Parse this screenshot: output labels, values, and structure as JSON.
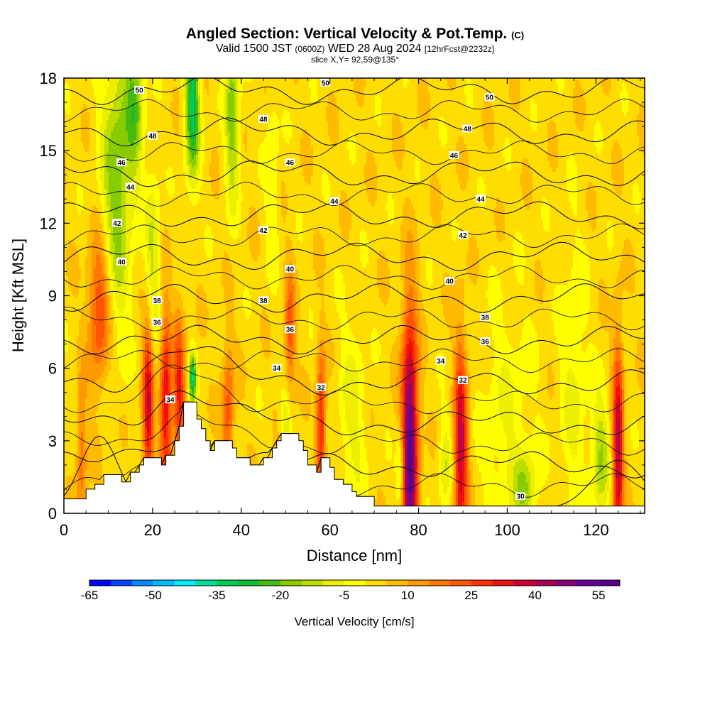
{
  "header": {
    "title": "Angled Section: Vertical Velocity & Pot.Temp.",
    "title_tag": "(C)",
    "valid_prefix": "Valid 1500 JST",
    "valid_utc": "(0600Z)",
    "valid_date": "WED 28 Aug 2024",
    "forecast_tag": "[12hrFcst@2232z]",
    "slice": "slice X,Y= 92,59@135°"
  },
  "chart_data": {
    "type": "heatmap",
    "title": "Angled Section: Vertical Velocity & Pot.Temp.",
    "xlabel": "Distance [nm]",
    "ylabel": "Height [Kft MSL]",
    "xlim": [
      0,
      131
    ],
    "ylim": [
      0,
      18
    ],
    "x_ticks": [
      "0",
      "20",
      "40",
      "60",
      "80",
      "100",
      "120"
    ],
    "x_tick_values": [
      0,
      20,
      40,
      60,
      80,
      100,
      120
    ],
    "y_ticks": [
      "0",
      "3",
      "6",
      "9",
      "12",
      "15",
      "18"
    ],
    "y_tick_values": [
      0,
      3,
      6,
      9,
      12,
      15,
      18
    ],
    "colorbar": {
      "label": "Vertical Velocity [cm/s]",
      "min": -65,
      "max": 60,
      "step": 5,
      "tick_labels": [
        "-65",
        "-50",
        "-35",
        "-20",
        "-5",
        "10",
        "25",
        "40",
        "55"
      ],
      "tick_values": [
        -65,
        -50,
        -35,
        -20,
        -5,
        10,
        25,
        40,
        55
      ],
      "colors": [
        "#0000ff",
        "#0044ff",
        "#0088ff",
        "#00bbff",
        "#00eeff",
        "#00dd99",
        "#00cc55",
        "#11bb33",
        "#44bb11",
        "#88cc00",
        "#bbdd00",
        "#eeee00",
        "#ffff00",
        "#ffdd00",
        "#ffbb00",
        "#ff9900",
        "#ff7700",
        "#ff5500",
        "#ff3300",
        "#ee1111",
        "#cc0033",
        "#aa0055",
        "#880077",
        "#660099",
        "#550088"
      ]
    },
    "theta_contours": [
      {
        "level": 30,
        "label": "30",
        "label_at": [
          103,
          0.7
        ]
      },
      {
        "level": 32,
        "label": "32",
        "label_at": [
          58,
          5.2
        ]
      },
      {
        "level": 34,
        "label": "34",
        "label_at": [
          48,
          6.0
        ]
      },
      {
        "level": 36,
        "label": "36",
        "label_at": [
          51,
          7.6
        ]
      },
      {
        "level": 38,
        "label": "38",
        "label_at": [
          45,
          8.8
        ]
      },
      {
        "level": 40,
        "label": "40",
        "label_at": [
          51,
          10.1
        ]
      },
      {
        "level": 42,
        "label": "42",
        "label_at": [
          45,
          11.7
        ]
      },
      {
        "level": 44,
        "label": "44",
        "label_at": [
          61,
          12.9
        ]
      },
      {
        "level": 46,
        "label": "46",
        "label_at": [
          51,
          14.5
        ]
      },
      {
        "level": 48,
        "label": "48",
        "label_at": [
          45,
          16.3
        ]
      },
      {
        "level": 50,
        "label": "50",
        "label_at": [
          59,
          17.8
        ]
      }
    ],
    "extra_contour_labels": [
      {
        "label": "50",
        "at": [
          17,
          17.5
        ]
      },
      {
        "label": "50",
        "at": [
          96,
          17.2
        ]
      },
      {
        "label": "48",
        "at": [
          20,
          15.6
        ]
      },
      {
        "label": "48",
        "at": [
          91,
          15.9
        ]
      },
      {
        "label": "46",
        "at": [
          13,
          14.5
        ]
      },
      {
        "label": "46",
        "at": [
          88,
          14.8
        ]
      },
      {
        "label": "44",
        "at": [
          15,
          13.5
        ]
      },
      {
        "label": "44",
        "at": [
          94,
          13.0
        ]
      },
      {
        "label": "42",
        "at": [
          12,
          12.0
        ]
      },
      {
        "label": "42",
        "at": [
          90,
          11.5
        ]
      },
      {
        "label": "40",
        "at": [
          13,
          10.4
        ]
      },
      {
        "label": "40",
        "at": [
          87,
          9.6
        ]
      },
      {
        "label": "38",
        "at": [
          21,
          8.8
        ]
      },
      {
        "label": "38",
        "at": [
          95,
          8.1
        ]
      },
      {
        "label": "36",
        "at": [
          21,
          7.9
        ]
      },
      {
        "label": "36",
        "at": [
          95,
          7.1
        ]
      },
      {
        "label": "34",
        "at": [
          24,
          4.7
        ]
      },
      {
        "label": "34",
        "at": [
          85,
          6.3
        ]
      },
      {
        "label": "32",
        "at": [
          90,
          5.5
        ]
      }
    ],
    "terrain": [
      [
        0,
        0.6
      ],
      [
        5,
        0.6
      ],
      [
        5,
        1.0
      ],
      [
        7,
        1.0
      ],
      [
        7,
        1.2
      ],
      [
        9,
        1.2
      ],
      [
        9,
        1.6
      ],
      [
        13,
        1.6
      ],
      [
        13,
        1.3
      ],
      [
        15,
        1.3
      ],
      [
        15,
        1.7
      ],
      [
        17,
        1.7
      ],
      [
        17,
        2.0
      ],
      [
        18,
        2.0
      ],
      [
        18,
        2.3
      ],
      [
        22,
        2.3
      ],
      [
        22,
        2.0
      ],
      [
        23,
        2.0
      ],
      [
        23,
        2.4
      ],
      [
        25,
        2.4
      ],
      [
        25,
        3.0
      ],
      [
        26,
        3.0
      ],
      [
        26,
        3.6
      ],
      [
        27,
        3.6
      ],
      [
        27,
        4.6
      ],
      [
        30,
        4.6
      ],
      [
        30,
        3.9
      ],
      [
        31,
        3.9
      ],
      [
        31,
        3.5
      ],
      [
        32,
        3.5
      ],
      [
        32,
        3.0
      ],
      [
        33,
        3.0
      ],
      [
        33,
        2.6
      ],
      [
        34,
        2.6
      ],
      [
        34,
        3.0
      ],
      [
        38,
        3.0
      ],
      [
        38,
        2.7
      ],
      [
        39,
        2.7
      ],
      [
        39,
        2.3
      ],
      [
        42,
        2.3
      ],
      [
        42,
        2.0
      ],
      [
        45,
        2.0
      ],
      [
        45,
        2.3
      ],
      [
        47,
        2.3
      ],
      [
        47,
        2.7
      ],
      [
        48,
        2.7
      ],
      [
        48,
        3.0
      ],
      [
        49,
        3.0
      ],
      [
        49,
        3.3
      ],
      [
        53,
        3.3
      ],
      [
        53,
        3.0
      ],
      [
        54,
        3.0
      ],
      [
        54,
        2.6
      ],
      [
        55,
        2.6
      ],
      [
        55,
        2.0
      ],
      [
        57,
        2.0
      ],
      [
        57,
        1.7
      ],
      [
        58,
        1.7
      ],
      [
        58,
        2.3
      ],
      [
        60,
        2.3
      ],
      [
        60,
        1.9
      ],
      [
        61,
        1.9
      ],
      [
        61,
        1.4
      ],
      [
        63,
        1.4
      ],
      [
        63,
        1.2
      ],
      [
        65,
        1.2
      ],
      [
        65,
        0.9
      ],
      [
        66,
        0.9
      ],
      [
        66,
        0.7
      ],
      [
        70,
        0.7
      ],
      [
        70,
        0.3
      ],
      [
        131,
        0.3
      ]
    ],
    "updrafts": [
      {
        "x": 78,
        "y": 2.7,
        "peak": 55,
        "width": 1.8,
        "height": 5.5
      },
      {
        "x": 89.5,
        "y": 2.5,
        "peak": 38,
        "width": 1.5,
        "height": 4.5
      },
      {
        "x": 125,
        "y": 2.5,
        "peak": 38,
        "width": 1.2,
        "height": 4.5
      },
      {
        "x": 58,
        "y": 3.6,
        "peak": 30,
        "width": 1.0,
        "height": 3.0
      },
      {
        "x": 19,
        "y": 4.4,
        "peak": 35,
        "width": 1.2,
        "height": 3.8
      },
      {
        "x": 23,
        "y": 4.4,
        "peak": 33,
        "width": 1.3,
        "height": 3.8
      },
      {
        "x": 26,
        "y": 4.9,
        "peak": 28,
        "width": 1.3,
        "height": 3.2
      },
      {
        "x": 8,
        "y": 8.4,
        "peak": 25,
        "width": 2.4,
        "height": 3.0
      },
      {
        "x": 37,
        "y": 4.0,
        "peak": 20,
        "width": 1.4,
        "height": 3.0
      },
      {
        "x": 51,
        "y": 7.5,
        "peak": 20,
        "width": 1.2,
        "height": 2.6
      },
      {
        "x": 4,
        "y": 2.5,
        "peak": 16,
        "width": 1.2,
        "height": 3.0
      }
    ],
    "downdrafts": [
      {
        "x": 12,
        "y": 14.0,
        "peak": -22,
        "width": 3.5,
        "height": 6.0
      },
      {
        "x": 16,
        "y": 17.0,
        "peak": -20,
        "width": 2.0,
        "height": 3.0
      },
      {
        "x": 29,
        "y": 17.0,
        "peak": -35,
        "width": 1.6,
        "height": 3.2
      },
      {
        "x": 38,
        "y": 16.5,
        "peak": -22,
        "width": 1.6,
        "height": 3.5
      },
      {
        "x": 20,
        "y": 10.5,
        "peak": -15,
        "width": 1.6,
        "height": 3.5
      },
      {
        "x": 29,
        "y": 5.6,
        "peak": -35,
        "width": 0.8,
        "height": 1.0
      },
      {
        "x": 76,
        "y": 1.8,
        "peak": -20,
        "width": 1.0,
        "height": 1.8
      },
      {
        "x": 121,
        "y": 2.3,
        "peak": -18,
        "width": 2.0,
        "height": 2.5
      },
      {
        "x": 104,
        "y": 1.0,
        "peak": -15,
        "width": 2.5,
        "height": 1.5
      },
      {
        "x": 86,
        "y": 2.0,
        "peak": -12,
        "width": 1.5,
        "height": 2.0
      },
      {
        "x": 100,
        "y": 3.5,
        "peak": -8,
        "width": 6.0,
        "height": 5.0
      },
      {
        "x": 50,
        "y": 3.8,
        "peak": -15,
        "width": 1.2,
        "height": 1.2
      },
      {
        "x": 65,
        "y": 4.0,
        "peak": -10,
        "width": 3.0,
        "height": 4.0
      },
      {
        "x": 115,
        "y": 5.0,
        "peak": -9,
        "width": 3.0,
        "height": 6.0
      },
      {
        "x": 47,
        "y": 14.0,
        "peak": -8,
        "width": 1.5,
        "height": 4.0
      }
    ]
  }
}
